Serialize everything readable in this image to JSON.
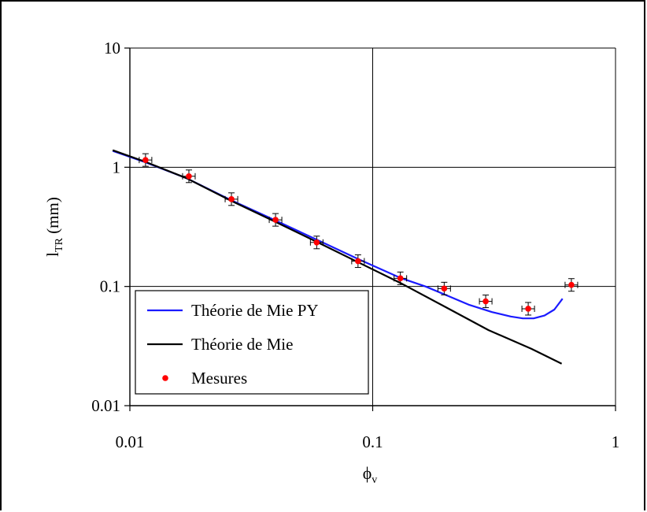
{
  "chart_data": {
    "type": "scatter",
    "xscale": "log",
    "yscale": "log",
    "xlim": [
      0.01,
      1
    ],
    "ylim": [
      0.01,
      10
    ],
    "xticks": [
      "0.01",
      "0.1",
      "1"
    ],
    "yticks": [
      "10",
      "1",
      "0.1",
      "0.01"
    ],
    "xtick_values": [
      0.01,
      0.1,
      1
    ],
    "ytick_values": [
      10,
      1,
      0.1,
      0.01
    ],
    "xlabel": "ϕ",
    "xlabel_sub": "v",
    "ylabel": "l",
    "ylabel_sub": "TR",
    "ylabel_suffix": " (mm)",
    "grid": true,
    "legend_position": "bottom-left",
    "series": [
      {
        "name": "Théorie de Mie PY",
        "kind": "line",
        "color": "#1a1aff",
        "x": [
          0.0085,
          0.0116,
          0.0171,
          0.0258,
          0.039,
          0.058,
          0.087,
          0.13,
          0.165,
          0.205,
          0.25,
          0.31,
          0.37,
          0.415,
          0.46,
          0.51,
          0.56,
          0.605
        ],
        "y": [
          1.37,
          1.1,
          0.81,
          0.535,
          0.365,
          0.25,
          0.17,
          0.118,
          0.1,
          0.083,
          0.07,
          0.061,
          0.056,
          0.054,
          0.054,
          0.057,
          0.064,
          0.079
        ]
      },
      {
        "name": "Théorie de Mie",
        "kind": "line",
        "color": "#000000",
        "x": [
          0.0085,
          0.0116,
          0.0171,
          0.0258,
          0.039,
          0.058,
          0.087,
          0.13,
          0.2,
          0.3,
          0.45,
          0.6
        ],
        "y": [
          1.39,
          1.11,
          0.81,
          0.53,
          0.355,
          0.24,
          0.16,
          0.107,
          0.067,
          0.043,
          0.03,
          0.0225
        ]
      },
      {
        "name": "Mesures",
        "kind": "points",
        "color": "#ff0000",
        "x": [
          0.0116,
          0.0175,
          0.0262,
          0.0398,
          0.0588,
          0.087,
          0.13,
          0.197,
          0.292,
          0.437,
          0.658
        ],
        "y": [
          1.15,
          0.84,
          0.54,
          0.362,
          0.234,
          0.163,
          0.117,
          0.096,
          0.075,
          0.065,
          0.103
        ]
      }
    ]
  }
}
